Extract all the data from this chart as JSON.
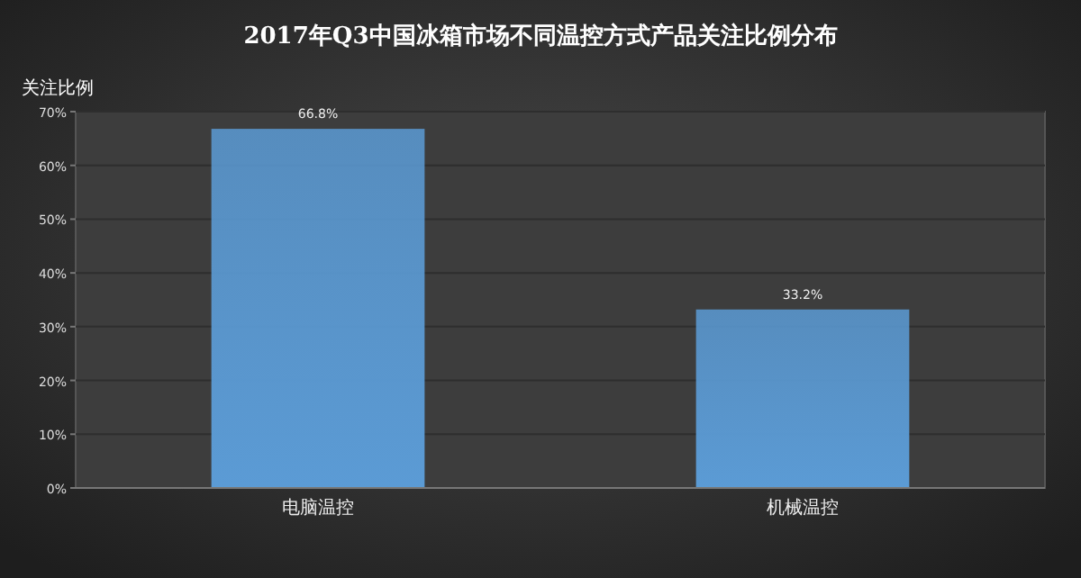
{
  "chart_data": {
    "type": "bar",
    "title": "2017年Q3中国冰箱市场不同温控方式产品关注比例分布",
    "ylabel": "关注比例",
    "categories": [
      "电脑温控",
      "机械温控"
    ],
    "values": [
      66.8,
      33.2
    ],
    "color": "#5b9bd5",
    "value_labels": [
      "66.8%",
      "33.2%"
    ],
    "ylim": [
      0,
      70
    ],
    "yticks": [
      {
        "value": 0,
        "label": "0%"
      },
      {
        "value": 10,
        "label": "10%"
      },
      {
        "value": 20,
        "label": "20%"
      },
      {
        "value": 30,
        "label": "30%"
      },
      {
        "value": 40,
        "label": "40%"
      },
      {
        "value": 50,
        "label": "50%"
      },
      {
        "value": 60,
        "label": "60%"
      },
      {
        "value": 70,
        "label": "70%"
      }
    ],
    "grid": "y"
  }
}
